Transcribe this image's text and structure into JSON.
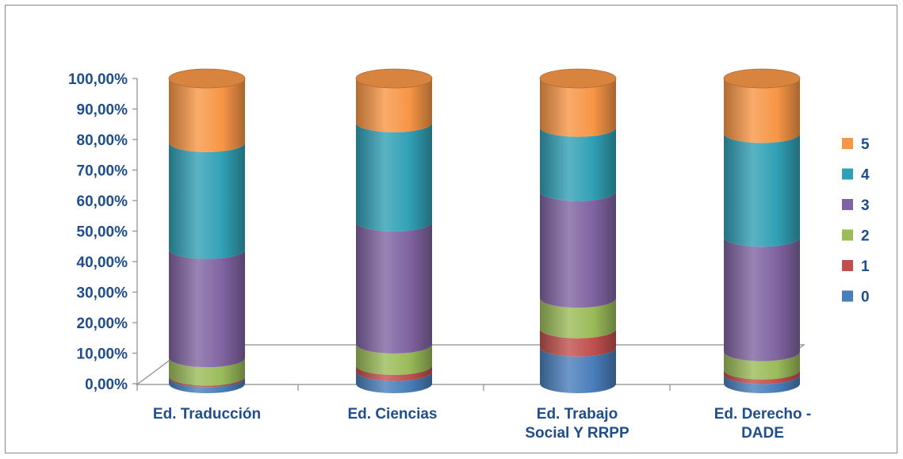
{
  "chart_data": {
    "type": "bar",
    "stacked": true,
    "three_d": true,
    "shape": "cylinder",
    "categories": [
      "Ed. Traducción",
      "Ed. Ciencias",
      "Ed. Trabajo Social Y RRPP",
      "Ed. Derecho - DADE"
    ],
    "category_labels": [
      [
        "Ed. Traducción"
      ],
      [
        "Ed. Ciencias"
      ],
      [
        "Ed. Trabajo",
        "Social Y RRPP"
      ],
      [
        "Ed. Derecho -",
        "DADE"
      ]
    ],
    "series": [
      {
        "name": "0",
        "color": "#4a7ebb",
        "values": [
          2.0,
          4.0,
          12.0,
          3.0
        ]
      },
      {
        "name": "1",
        "color": "#c0504d",
        "values": [
          0.5,
          2.0,
          6.0,
          1.5
        ]
      },
      {
        "name": "2",
        "color": "#9bbb59",
        "values": [
          6.0,
          7.0,
          10.0,
          6.0
        ]
      },
      {
        "name": "3",
        "color": "#8064a2",
        "values": [
          35.5,
          40.0,
          35.0,
          37.5
        ]
      },
      {
        "name": "4",
        "color": "#31a0b5",
        "values": [
          35.0,
          32.5,
          21.0,
          34.0
        ]
      },
      {
        "name": "5",
        "color": "#f79646",
        "values": [
          21.0,
          14.5,
          16.0,
          18.0
        ]
      }
    ],
    "yticks": [
      "0,00%",
      "10,00%",
      "20,00%",
      "30,00%",
      "40,00%",
      "50,00%",
      "60,00%",
      "70,00%",
      "80,00%",
      "90,00%",
      "100,00%"
    ],
    "ylim": [
      0,
      100
    ],
    "legend_position": "right",
    "grid": false
  }
}
